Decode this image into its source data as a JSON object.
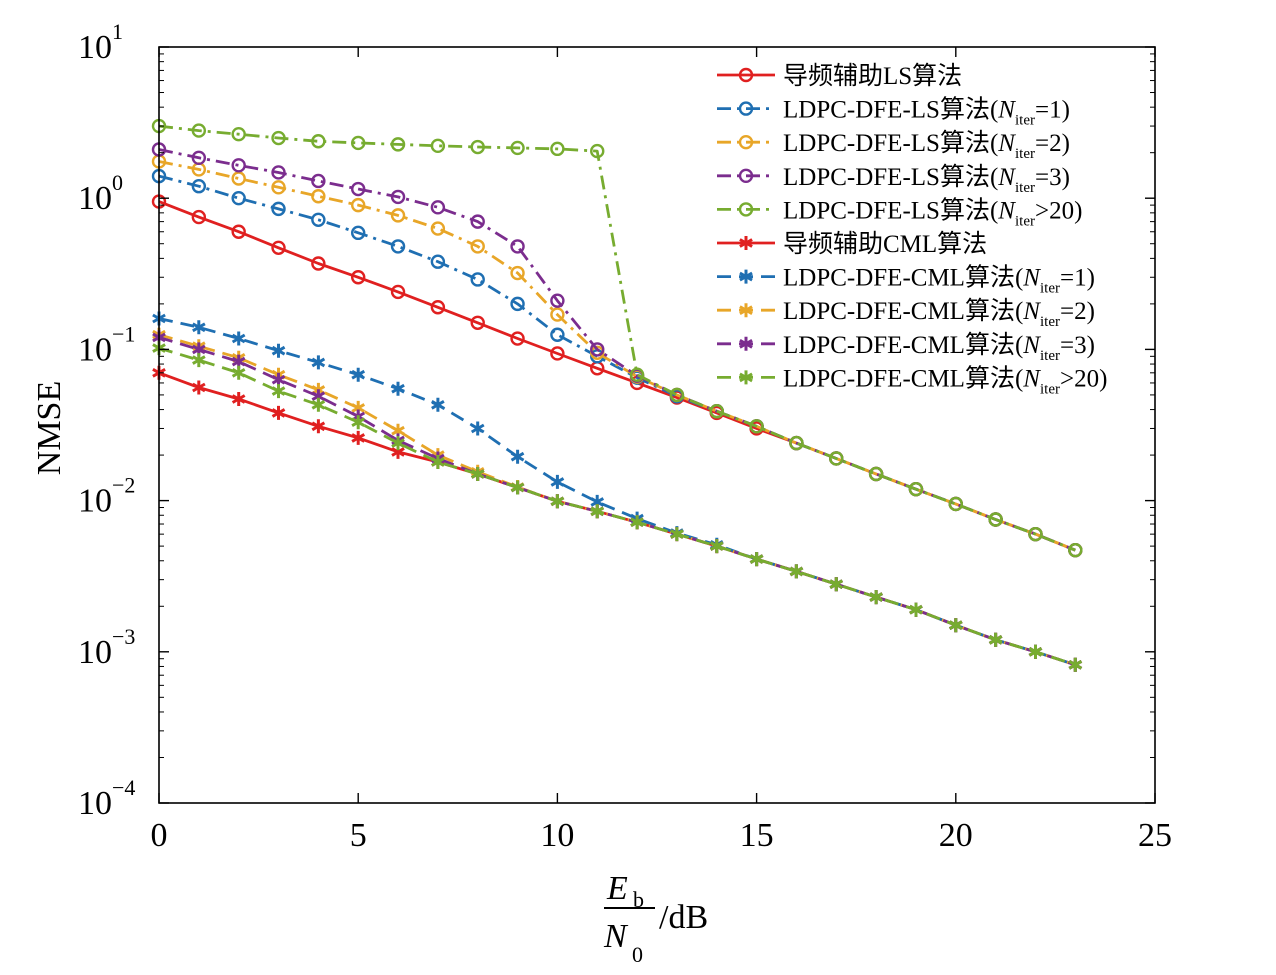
{
  "chart_data": {
    "type": "line",
    "title": "",
    "xlabel": {
      "num_sym": "E",
      "num_sub": "b",
      "den_sym": "N",
      "den_sub": "0",
      "unit": "/dB"
    },
    "ylabel": "NMSE",
    "xlim": [
      0,
      25
    ],
    "ylim": [
      0.0001,
      10
    ],
    "yscale": "log",
    "grid": false,
    "legend_position": "top-right",
    "x_ticks": [
      "0",
      "5",
      "10",
      "15",
      "20",
      "25"
    ],
    "y_ticks": [
      {
        "base": "10",
        "exp": "1"
      },
      {
        "base": "10",
        "exp": "0"
      },
      {
        "base": "10",
        "exp": "−1"
      },
      {
        "base": "10",
        "exp": "−2"
      },
      {
        "base": "10",
        "exp": "−3"
      },
      {
        "base": "10",
        "exp": "−4"
      }
    ],
    "x": [
      0,
      1,
      2,
      3,
      4,
      5,
      6,
      7,
      8,
      9,
      10,
      11,
      12,
      13,
      14,
      15,
      16,
      17,
      18,
      19,
      20,
      21,
      22,
      23
    ],
    "series": [
      {
        "legend_pre": "导频辅助LS算法",
        "legend_sub": "",
        "legend_post": "",
        "color": "#e02020",
        "dash": "solid",
        "marker": "circle",
        "values": [
          0.95,
          0.75,
          0.6,
          0.47,
          0.37,
          0.3,
          0.24,
          0.19,
          0.15,
          0.118,
          0.094,
          0.075,
          0.06,
          0.048,
          0.038,
          0.03,
          0.024,
          0.019,
          0.015,
          0.0119,
          0.0095,
          0.0075,
          0.006,
          0.0047
        ]
      },
      {
        "legend_pre": "LDPC-DFE-LS算法(N",
        "legend_sub": "iter",
        "legend_post": "=1)",
        "color": "#1f6fb2",
        "dash": "dashdot",
        "marker": "circle",
        "values": [
          1.4,
          1.2,
          1.0,
          0.85,
          0.72,
          0.59,
          0.48,
          0.38,
          0.29,
          0.2,
          0.125,
          0.09,
          0.065,
          0.049,
          0.039,
          0.031,
          0.024,
          0.019,
          0.015,
          0.0119,
          0.0095,
          0.0075,
          0.006,
          0.0047
        ]
      },
      {
        "legend_pre": "LDPC-DFE-LS算法(N",
        "legend_sub": "iter",
        "legend_post": "=2)",
        "color": "#e8a628",
        "dash": "dashdot",
        "marker": "circle",
        "values": [
          1.75,
          1.55,
          1.35,
          1.18,
          1.03,
          0.9,
          0.77,
          0.63,
          0.48,
          0.32,
          0.17,
          0.095,
          0.066,
          0.05,
          0.039,
          0.031,
          0.024,
          0.019,
          0.015,
          0.0119,
          0.0095,
          0.0075,
          0.006,
          0.0047
        ]
      },
      {
        "legend_pre": "LDPC-DFE-LS算法(N",
        "legend_sub": "iter",
        "legend_post": "=3)",
        "color": "#7b2d8e",
        "dash": "dashdot",
        "marker": "circle",
        "values": [
          2.1,
          1.85,
          1.65,
          1.48,
          1.3,
          1.15,
          1.02,
          0.87,
          0.7,
          0.48,
          0.21,
          0.1,
          0.067,
          0.05,
          0.039,
          0.031,
          0.024,
          0.019,
          0.015,
          0.0119,
          0.0095,
          0.0075,
          0.006,
          0.0047
        ]
      },
      {
        "legend_pre": "LDPC-DFE-LS算法(N",
        "legend_sub": "iter",
        "legend_post": ">20)",
        "color": "#77ac30",
        "dash": "dashdot",
        "marker": "circle",
        "values": [
          3.0,
          2.8,
          2.65,
          2.5,
          2.38,
          2.32,
          2.27,
          2.22,
          2.18,
          2.15,
          2.12,
          2.05,
          0.068,
          0.05,
          0.039,
          0.031,
          0.024,
          0.019,
          0.015,
          0.0119,
          0.0095,
          0.0075,
          0.006,
          0.0047
        ]
      },
      {
        "legend_pre": "导频辅助CML算法",
        "legend_sub": "",
        "legend_post": "",
        "color": "#e02020",
        "dash": "solid",
        "marker": "star",
        "values": [
          0.07,
          0.056,
          0.047,
          0.038,
          0.031,
          0.026,
          0.021,
          0.018,
          0.015,
          0.0122,
          0.0099,
          0.0085,
          0.0072,
          0.006,
          0.005,
          0.0041,
          0.0034,
          0.0028,
          0.0023,
          0.0019,
          0.0015,
          0.0012,
          0.001,
          0.00082
        ]
      },
      {
        "legend_pre": "LDPC-DFE-CML算法(N",
        "legend_sub": "iter",
        "legend_post": "=1)",
        "color": "#1f6fb2",
        "dash": "dashed",
        "marker": "star",
        "values": [
          0.16,
          0.14,
          0.118,
          0.098,
          0.082,
          0.068,
          0.055,
          0.043,
          0.03,
          0.0195,
          0.0133,
          0.0098,
          0.0076,
          0.0061,
          0.0051,
          0.0041,
          0.0034,
          0.0028,
          0.0023,
          0.0019,
          0.0015,
          0.0012,
          0.001,
          0.00082
        ]
      },
      {
        "legend_pre": "LDPC-DFE-CML算法(N",
        "legend_sub": "iter",
        "legend_post": "=2)",
        "color": "#e8a628",
        "dash": "dashed",
        "marker": "star",
        "values": [
          0.125,
          0.105,
          0.088,
          0.068,
          0.054,
          0.041,
          0.029,
          0.02,
          0.0155,
          0.0123,
          0.0099,
          0.0085,
          0.0072,
          0.006,
          0.005,
          0.0041,
          0.0034,
          0.0028,
          0.0023,
          0.0019,
          0.0015,
          0.0012,
          0.001,
          0.00082
        ]
      },
      {
        "legend_pre": "LDPC-DFE-CML算法(N",
        "legend_sub": "iter",
        "legend_post": "=3)",
        "color": "#7b2d8e",
        "dash": "dashed",
        "marker": "star",
        "values": [
          0.12,
          0.1,
          0.083,
          0.063,
          0.049,
          0.036,
          0.025,
          0.019,
          0.015,
          0.0122,
          0.0099,
          0.0085,
          0.0072,
          0.006,
          0.005,
          0.0041,
          0.0034,
          0.0028,
          0.0023,
          0.0019,
          0.0015,
          0.0012,
          0.001,
          0.00082
        ]
      },
      {
        "legend_pre": "LDPC-DFE-CML算法(N",
        "legend_sub": "iter",
        "legend_post": ">20)",
        "color": "#77ac30",
        "dash": "dashed",
        "marker": "star",
        "values": [
          0.102,
          0.085,
          0.07,
          0.053,
          0.043,
          0.033,
          0.024,
          0.018,
          0.015,
          0.0122,
          0.0099,
          0.0085,
          0.0072,
          0.006,
          0.005,
          0.0041,
          0.0034,
          0.0028,
          0.0023,
          0.0019,
          0.0015,
          0.0012,
          0.001,
          0.00082
        ]
      }
    ]
  }
}
